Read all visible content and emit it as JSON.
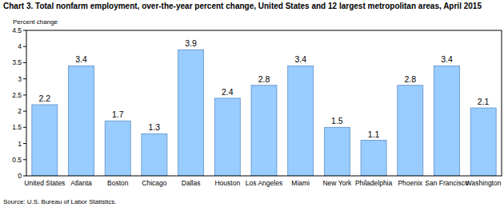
{
  "chart_data": {
    "type": "bar",
    "title": "Chart 3. Total nonfarm employment, over-the-year percent change, United States and 12 largest metropolitan areas, April 2015",
    "y_label": "Percent change",
    "source": "Source: U.S. Bureau of Labor Statistics.",
    "categories": [
      "United States",
      "Atlanta",
      "Boston",
      "Chicago",
      "Dallas",
      "Houston",
      "Los Angeles",
      "Miami",
      "New York",
      "Philadelphia",
      "Phoenix",
      "San Francisco",
      "Washington"
    ],
    "values": [
      2.2,
      3.4,
      1.7,
      1.3,
      3.9,
      2.4,
      2.8,
      3.4,
      1.5,
      1.1,
      2.8,
      3.4,
      2.1
    ],
    "color": "#99ccff",
    "ylim": [
      0,
      4.5
    ],
    "yticks": [
      0,
      0.5,
      1,
      1.5,
      2,
      2.5,
      3,
      3.5,
      4,
      4.5
    ],
    "grid": false,
    "data_labels": true
  }
}
